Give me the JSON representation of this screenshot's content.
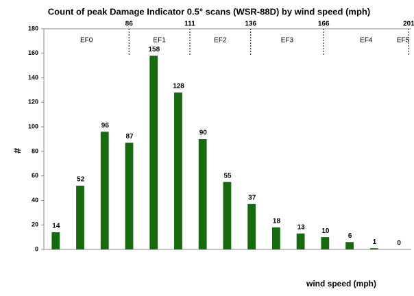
{
  "chart_data": {
    "type": "bar",
    "title": "Count of peak Damage Indicator 0.5° scans (WSR-88D) by wind speed (mph)",
    "ylabel": "#",
    "xlabel": "wind speed (mph)",
    "categories": [
      null,
      null,
      null,
      null,
      null,
      null,
      null,
      null,
      null,
      null,
      null,
      null,
      null,
      null,
      null
    ],
    "values": [
      14,
      52,
      96,
      87,
      158,
      128,
      90,
      55,
      37,
      18,
      13,
      10,
      6,
      1,
      0
    ],
    "color": "#176b0f",
    "ylim": [
      0,
      180
    ],
    "yticks": [
      0,
      20,
      40,
      60,
      80,
      100,
      120,
      140,
      160,
      180
    ],
    "grid": false,
    "x2lim": [
      51,
      202
    ],
    "x2ticks": [
      86,
      111,
      136,
      166,
      201
    ],
    "regions": [
      "EF0",
      "EF1",
      "EF2",
      "EF3",
      "EF4",
      "EF5"
    ]
  }
}
